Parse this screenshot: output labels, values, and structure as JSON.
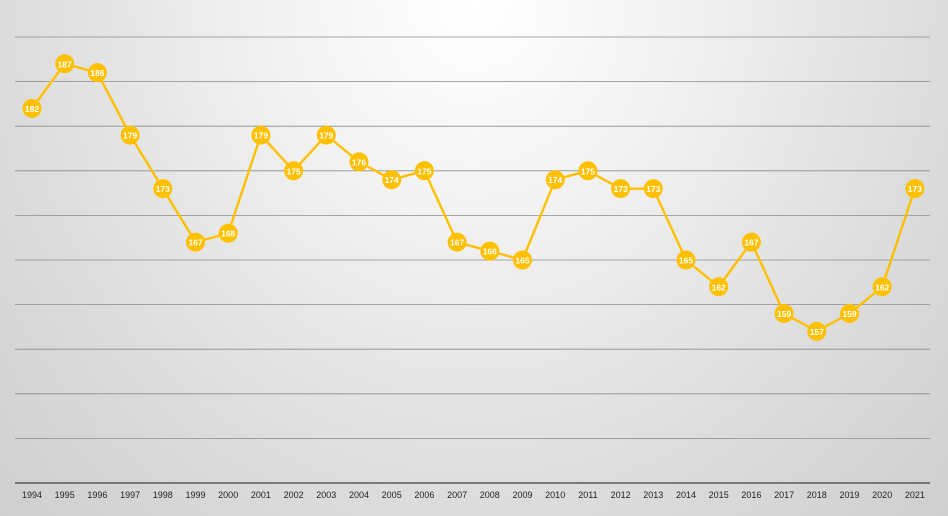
{
  "chart_data": {
    "type": "line",
    "title": "",
    "xlabel": "",
    "ylabel": "",
    "x": [
      "1994",
      "1995",
      "1996",
      "1997",
      "1998",
      "1999",
      "2000",
      "2001",
      "2002",
      "2003",
      "2004",
      "2005",
      "2006",
      "2007",
      "2008",
      "2009",
      "2010",
      "2011",
      "2012",
      "2013",
      "2014",
      "2015",
      "2016",
      "2017",
      "2018",
      "2019",
      "2020",
      "2021"
    ],
    "series": [
      {
        "values": [
          182,
          187,
          186,
          179,
          173,
          167,
          168,
          179,
          175,
          179,
          176,
          174,
          175,
          167,
          166,
          165,
          174,
          175,
          173,
          173,
          165,
          162,
          167,
          159,
          157,
          159,
          162,
          173
        ]
      }
    ],
    "ylim": [
      140,
      190
    ],
    "y_gridline_step": 5,
    "y_tick_labels_shown": false,
    "data_labels_shown": true,
    "grid": true,
    "legend": "none",
    "colors": {
      "series": "#FFC000",
      "data_label_text": "#FFFFFF"
    }
  }
}
